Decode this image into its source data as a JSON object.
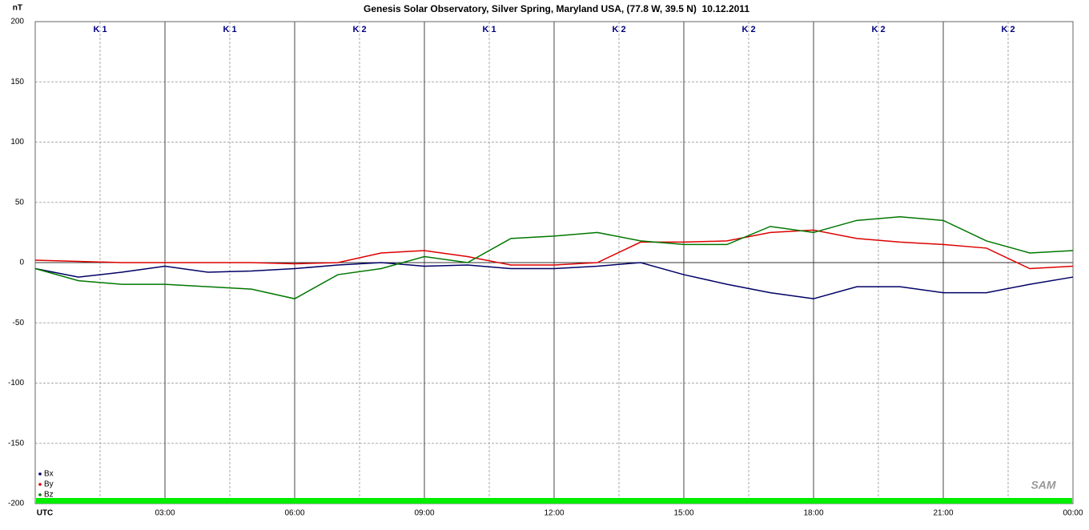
{
  "chart_data": {
    "type": "line",
    "title": "Genesis Solar Observatory, Silver Spring, Maryland USA, (77.8 W, 39.5 N)  10.12.2011",
    "y_label": "nT",
    "logo": "SAM",
    "k_index": [
      "K 1",
      "K 1",
      "K 2",
      "K 1",
      "K 2",
      "K 2",
      "K 2",
      "K 2"
    ],
    "x": [
      0,
      1,
      2,
      3,
      4,
      5,
      6,
      7,
      8,
      9,
      10,
      11,
      12,
      13,
      14,
      15,
      16,
      17,
      18,
      19,
      20,
      21,
      22,
      23,
      24
    ],
    "series": [
      {
        "name": "Bx",
        "color": "#000066",
        "values": [
          -5,
          -12,
          -8,
          -3,
          -8,
          -7,
          -5,
          -2,
          0,
          -3,
          -2,
          -5,
          -5,
          -3,
          0,
          -10,
          -18,
          -25,
          -30,
          -20,
          -20,
          -25,
          -25,
          -18,
          -12
        ]
      },
      {
        "name": "By",
        "color": "#dd0000",
        "values": [
          2,
          1,
          0,
          0,
          0,
          0,
          -1,
          0,
          8,
          10,
          5,
          -2,
          -2,
          0,
          17,
          17,
          18,
          25,
          27,
          20,
          17,
          15,
          12,
          -5,
          -3
        ]
      },
      {
        "name": "Bz",
        "color": "#007700",
        "values": [
          -5,
          -15,
          -18,
          -18,
          -20,
          -22,
          -30,
          -10,
          -5,
          5,
          0,
          20,
          22,
          25,
          18,
          15,
          15,
          30,
          25,
          35,
          38,
          35,
          18,
          8,
          10
        ]
      }
    ],
    "xlim": [
      0,
      24
    ],
    "xticks": [
      {
        "value": 0,
        "label": "UTC"
      },
      {
        "value": 3,
        "label": "03:00"
      },
      {
        "value": 6,
        "label": "06:00"
      },
      {
        "value": 9,
        "label": "09:00"
      },
      {
        "value": 12,
        "label": "12:00"
      },
      {
        "value": 15,
        "label": "15:00"
      },
      {
        "value": 18,
        "label": "18:00"
      },
      {
        "value": 21,
        "label": "21:00"
      },
      {
        "value": 24,
        "label": "00:00"
      }
    ],
    "ylim": [
      -200,
      200
    ],
    "yticks": [
      -200,
      -150,
      -100,
      -50,
      0,
      50,
      100,
      150,
      200
    ],
    "grid": true,
    "legend": "bottom-left"
  }
}
